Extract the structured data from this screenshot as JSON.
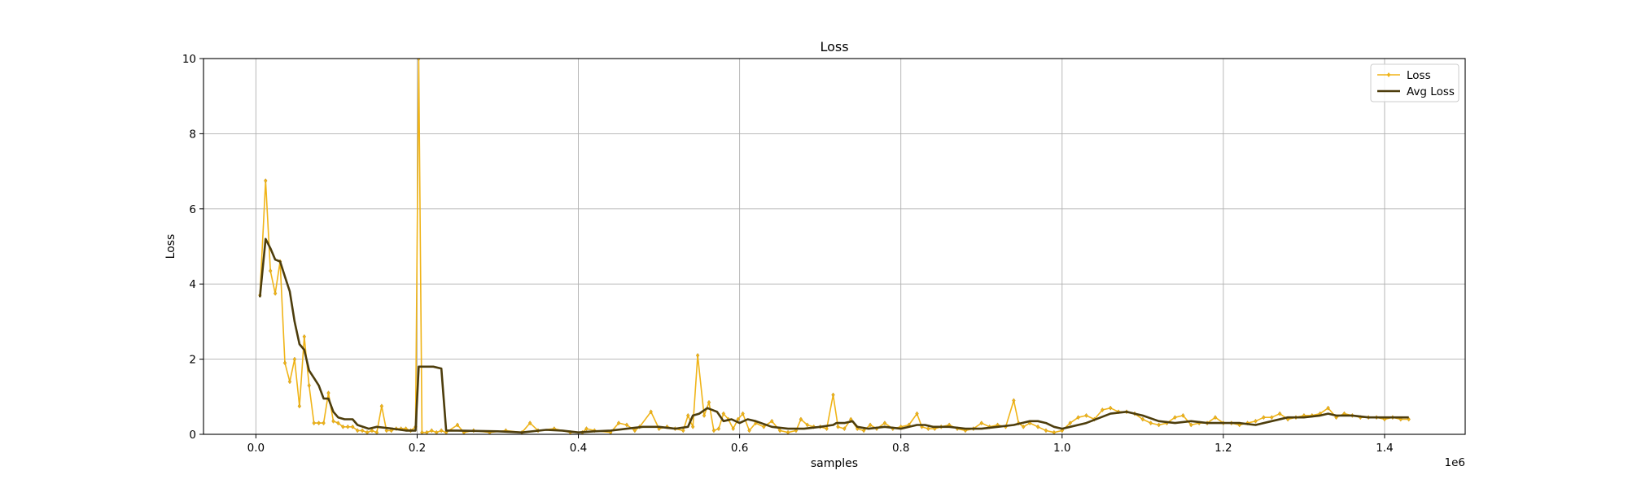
{
  "chart_data": {
    "type": "line",
    "title": "Loss",
    "xlabel": "samples",
    "ylabel": "Loss",
    "x_offset_label": "1e6",
    "xlim": [
      -0.065,
      1.5
    ],
    "ylim": [
      0,
      10
    ],
    "x_ticks": [
      0.0,
      0.2,
      0.4,
      0.6,
      0.8,
      1.0,
      1.2,
      1.4
    ],
    "x_tick_labels": [
      "0.0",
      "0.2",
      "0.4",
      "0.6",
      "0.8",
      "1.0",
      "1.2",
      "1.4"
    ],
    "y_ticks": [
      0,
      2,
      4,
      6,
      8,
      10
    ],
    "y_tick_labels": [
      "0",
      "2",
      "4",
      "6",
      "8",
      "10"
    ],
    "grid": true,
    "legend_position": "top-right",
    "series": [
      {
        "name": "Loss",
        "color": "#f0b418",
        "marker": "diamond",
        "x": [
          0.005,
          0.012,
          0.018,
          0.024,
          0.03,
          0.036,
          0.042,
          0.048,
          0.054,
          0.06,
          0.066,
          0.072,
          0.078,
          0.084,
          0.09,
          0.096,
          0.102,
          0.108,
          0.114,
          0.12,
          0.126,
          0.132,
          0.138,
          0.144,
          0.15,
          0.156,
          0.162,
          0.168,
          0.174,
          0.18,
          0.186,
          0.192,
          0.198,
          0.202,
          0.206,
          0.212,
          0.218,
          0.224,
          0.23,
          0.236,
          0.25,
          0.258,
          0.27,
          0.29,
          0.31,
          0.33,
          0.34,
          0.35,
          0.37,
          0.39,
          0.405,
          0.41,
          0.42,
          0.44,
          0.45,
          0.46,
          0.47,
          0.476,
          0.49,
          0.5,
          0.51,
          0.52,
          0.53,
          0.536,
          0.542,
          0.548,
          0.556,
          0.562,
          0.568,
          0.574,
          0.58,
          0.586,
          0.592,
          0.598,
          0.604,
          0.612,
          0.62,
          0.63,
          0.64,
          0.65,
          0.66,
          0.67,
          0.676,
          0.684,
          0.692,
          0.7,
          0.708,
          0.716,
          0.722,
          0.73,
          0.738,
          0.746,
          0.754,
          0.762,
          0.77,
          0.78,
          0.79,
          0.8,
          0.81,
          0.82,
          0.826,
          0.834,
          0.842,
          0.85,
          0.86,
          0.87,
          0.88,
          0.89,
          0.9,
          0.91,
          0.92,
          0.93,
          0.94,
          0.946,
          0.952,
          0.96,
          0.97,
          0.98,
          0.99,
          1.0,
          1.01,
          1.02,
          1.03,
          1.04,
          1.05,
          1.06,
          1.07,
          1.08,
          1.09,
          1.1,
          1.11,
          1.12,
          1.13,
          1.14,
          1.15,
          1.16,
          1.17,
          1.18,
          1.19,
          1.2,
          1.21,
          1.22,
          1.23,
          1.24,
          1.25,
          1.26,
          1.27,
          1.28,
          1.29,
          1.3,
          1.31,
          1.32,
          1.33,
          1.34,
          1.35,
          1.36,
          1.37,
          1.38,
          1.39,
          1.4,
          1.41,
          1.42,
          1.43
        ],
        "y": [
          3.7,
          6.75,
          4.35,
          3.75,
          4.6,
          1.9,
          1.4,
          2.0,
          0.75,
          2.6,
          1.3,
          0.3,
          0.3,
          0.3,
          1.1,
          0.35,
          0.3,
          0.2,
          0.2,
          0.2,
          0.1,
          0.1,
          0.05,
          0.1,
          0.05,
          0.75,
          0.1,
          0.1,
          0.15,
          0.15,
          0.15,
          0.1,
          0.2,
          10.0,
          0.05,
          0.05,
          0.1,
          0.05,
          0.1,
          0.05,
          0.25,
          0.05,
          0.1,
          0.05,
          0.1,
          0.05,
          0.3,
          0.1,
          0.15,
          0.05,
          0.05,
          0.15,
          0.1,
          0.05,
          0.3,
          0.25,
          0.1,
          0.2,
          0.6,
          0.15,
          0.2,
          0.15,
          0.1,
          0.5,
          0.2,
          2.1,
          0.5,
          0.85,
          0.1,
          0.15,
          0.55,
          0.4,
          0.15,
          0.4,
          0.55,
          0.1,
          0.3,
          0.2,
          0.35,
          0.1,
          0.05,
          0.1,
          0.4,
          0.25,
          0.2,
          0.2,
          0.15,
          1.05,
          0.2,
          0.15,
          0.4,
          0.15,
          0.1,
          0.25,
          0.15,
          0.3,
          0.15,
          0.2,
          0.25,
          0.55,
          0.2,
          0.15,
          0.15,
          0.2,
          0.25,
          0.15,
          0.1,
          0.15,
          0.3,
          0.2,
          0.25,
          0.2,
          0.9,
          0.3,
          0.2,
          0.3,
          0.2,
          0.1,
          0.05,
          0.1,
          0.3,
          0.45,
          0.5,
          0.4,
          0.65,
          0.7,
          0.6,
          0.6,
          0.55,
          0.4,
          0.3,
          0.25,
          0.3,
          0.45,
          0.5,
          0.25,
          0.3,
          0.3,
          0.45,
          0.3,
          0.3,
          0.25,
          0.3,
          0.35,
          0.45,
          0.45,
          0.55,
          0.4,
          0.45,
          0.5,
          0.5,
          0.55,
          0.7,
          0.45,
          0.55,
          0.5,
          0.45,
          0.45,
          0.45,
          0.4,
          0.45,
          0.4,
          0.4
        ]
      },
      {
        "name": "Avg Loss",
        "color": "#4d3d0c",
        "marker": "none",
        "x": [
          0.005,
          0.012,
          0.018,
          0.024,
          0.03,
          0.036,
          0.042,
          0.048,
          0.054,
          0.06,
          0.066,
          0.072,
          0.078,
          0.084,
          0.09,
          0.096,
          0.102,
          0.11,
          0.12,
          0.126,
          0.14,
          0.15,
          0.17,
          0.186,
          0.192,
          0.198,
          0.202,
          0.21,
          0.22,
          0.23,
          0.236,
          0.25,
          0.3,
          0.33,
          0.36,
          0.38,
          0.4,
          0.42,
          0.44,
          0.46,
          0.48,
          0.5,
          0.52,
          0.536,
          0.542,
          0.55,
          0.56,
          0.572,
          0.58,
          0.59,
          0.6,
          0.61,
          0.62,
          0.64,
          0.66,
          0.68,
          0.7,
          0.716,
          0.72,
          0.73,
          0.74,
          0.746,
          0.76,
          0.78,
          0.8,
          0.82,
          0.83,
          0.84,
          0.86,
          0.88,
          0.9,
          0.92,
          0.94,
          0.95,
          0.96,
          0.97,
          0.98,
          0.99,
          1.0,
          1.01,
          1.03,
          1.06,
          1.08,
          1.1,
          1.12,
          1.14,
          1.16,
          1.18,
          1.2,
          1.22,
          1.24,
          1.26,
          1.28,
          1.3,
          1.32,
          1.33,
          1.34,
          1.36,
          1.38,
          1.4,
          1.43
        ],
        "y": [
          3.65,
          5.2,
          4.95,
          4.65,
          4.6,
          4.2,
          3.8,
          3.0,
          2.4,
          2.25,
          1.7,
          1.5,
          1.3,
          0.95,
          0.95,
          0.6,
          0.45,
          0.4,
          0.4,
          0.25,
          0.15,
          0.2,
          0.15,
          0.1,
          0.1,
          0.1,
          1.8,
          1.8,
          1.8,
          1.75,
          0.1,
          0.1,
          0.08,
          0.05,
          0.12,
          0.1,
          0.05,
          0.08,
          0.1,
          0.15,
          0.2,
          0.2,
          0.15,
          0.2,
          0.5,
          0.55,
          0.7,
          0.6,
          0.35,
          0.4,
          0.3,
          0.4,
          0.35,
          0.2,
          0.15,
          0.15,
          0.2,
          0.25,
          0.3,
          0.3,
          0.35,
          0.2,
          0.15,
          0.2,
          0.15,
          0.25,
          0.25,
          0.2,
          0.2,
          0.15,
          0.15,
          0.2,
          0.25,
          0.3,
          0.35,
          0.35,
          0.3,
          0.2,
          0.15,
          0.2,
          0.3,
          0.55,
          0.6,
          0.5,
          0.35,
          0.3,
          0.35,
          0.3,
          0.3,
          0.3,
          0.25,
          0.35,
          0.45,
          0.45,
          0.5,
          0.55,
          0.5,
          0.5,
          0.45,
          0.45,
          0.45
        ]
      }
    ]
  }
}
